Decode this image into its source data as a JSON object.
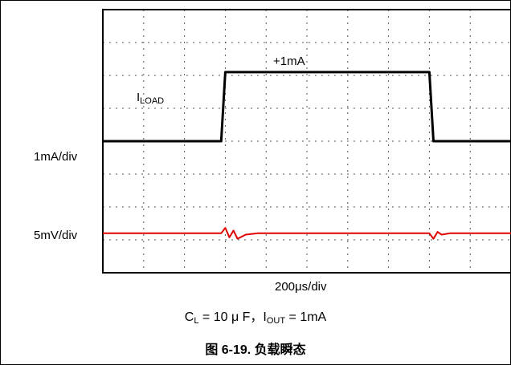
{
  "chart_data": {
    "type": "line",
    "figure_title": "图 6-19. 负载瞬态",
    "caption": {
      "c": "C",
      "c_sub": "L",
      "c_rest": " = 10 μ F，I",
      "i_sub": "OUT",
      "i_rest": " = 1mA"
    },
    "xlabel": "200μs/div",
    "grid": true,
    "x_divisions": 10,
    "y_divisions": 8,
    "annotations": {
      "step_label": "+1mA",
      "load_label": "I",
      "load_sub": "LOAD"
    },
    "series": [
      {
        "name": "",
        "scale_label": "1mA/div",
        "color": "#000000",
        "units": "mA",
        "x": [
          0,
          0.29,
          0.3,
          0.8,
          0.81,
          1.0
        ],
        "y": [
          0,
          0,
          1,
          1,
          0,
          0
        ]
      },
      {
        "name": "",
        "scale_label": "5mV/div",
        "color": "#e00000",
        "units": "mV",
        "x": [
          0,
          0.29,
          0.3,
          0.31,
          0.32,
          0.33,
          0.35,
          0.38,
          0.5,
          0.8,
          0.81,
          0.82,
          0.83,
          0.85,
          1.0
        ],
        "y": [
          0,
          0,
          4,
          -3,
          2,
          -4,
          -1,
          0,
          0,
          0,
          -4,
          1,
          -1,
          0,
          0
        ]
      }
    ]
  }
}
